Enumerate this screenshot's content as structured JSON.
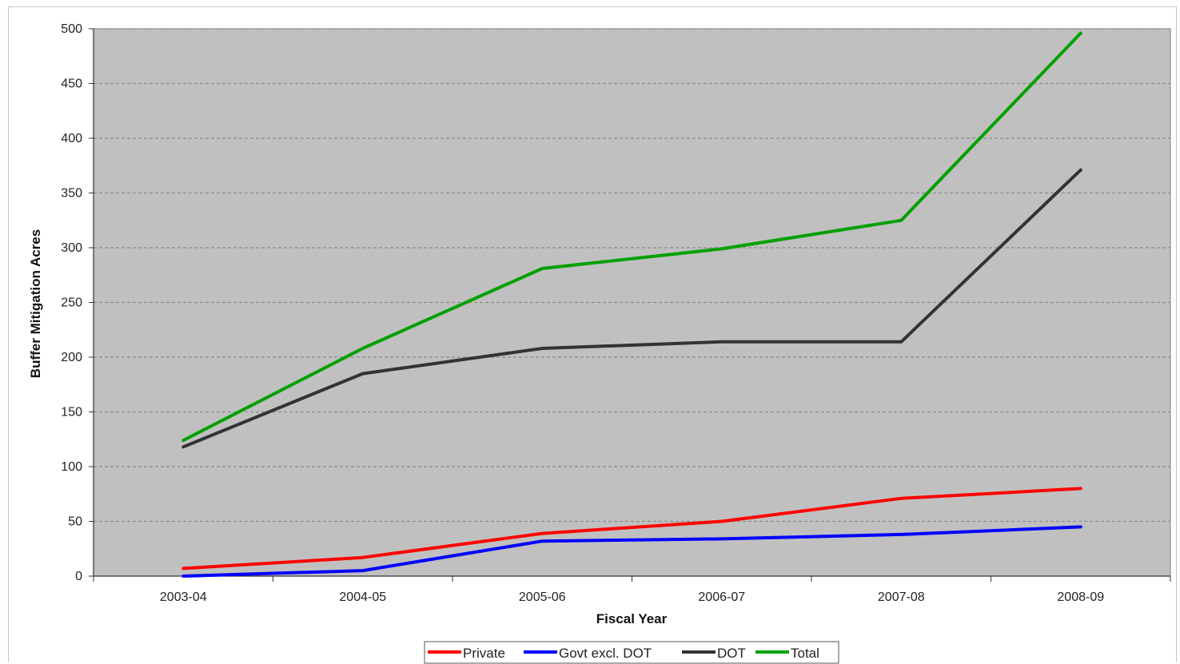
{
  "chart_data": {
    "type": "line",
    "title": "",
    "xlabel": "Fiscal Year",
    "ylabel": "Buffer Mitigation Acres",
    "categories": [
      "2003-04",
      "2004-05",
      "2005-06",
      "2006-07",
      "2007-08",
      "2008-09"
    ],
    "ylim": [
      0,
      500
    ],
    "yticks": [
      0,
      50,
      100,
      150,
      200,
      250,
      300,
      350,
      400,
      450,
      500
    ],
    "grid": "horizontal dashed",
    "legend_position": "bottom",
    "series": [
      {
        "name": "Private",
        "color": "#ff0000",
        "values": [
          7,
          17,
          39,
          50,
          71,
          80
        ]
      },
      {
        "name": "Govt excl. DOT",
        "color": "#0000ff",
        "values": [
          0,
          5,
          32,
          34,
          38,
          45
        ]
      },
      {
        "name": "DOT",
        "color": "#333333",
        "values": [
          118,
          185,
          208,
          214,
          214,
          371
        ]
      },
      {
        "name": "Total",
        "color": "#00a000",
        "values": [
          124,
          208,
          281,
          299,
          325,
          496
        ]
      }
    ]
  },
  "colors": {
    "plot_background": "#c0c0c0",
    "gridline": "#8a8a8a"
  }
}
